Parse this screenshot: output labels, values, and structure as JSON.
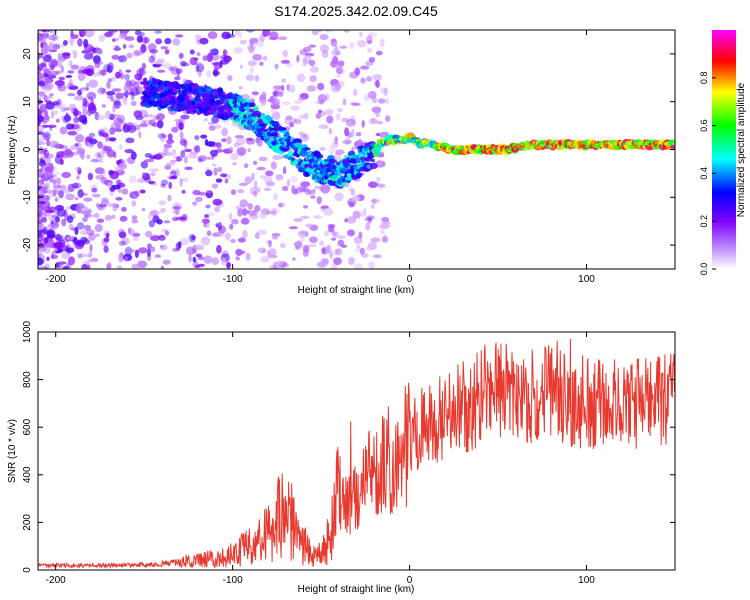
{
  "title": "S174.2025.342.02.09.C45",
  "chart_data": [
    {
      "type": "heatmap",
      "xlabel": "Height of straight line (km)",
      "ylabel": "Frequency (Hz)",
      "xlim": [
        -210,
        150
      ],
      "ylim": [
        -25,
        25
      ],
      "x_ticks": [
        -200,
        -100,
        0,
        100
      ],
      "x_tick_labels": [
        "-200",
        "-100",
        "0",
        "100"
      ],
      "y_ticks": [
        20,
        10,
        0,
        -10,
        -20
      ],
      "y_tick_labels": [
        "20",
        "10",
        "0",
        "-10",
        "-20"
      ],
      "ridge_x": [
        -210,
        -180,
        -150,
        -130,
        -110,
        -100,
        -90,
        -80,
        -70,
        -60,
        -50,
        -40,
        -30,
        -20,
        -15,
        -5,
        0,
        5,
        15,
        25,
        40,
        55,
        70,
        85,
        100,
        120,
        140,
        150
      ],
      "ridge_y": [
        14,
        13,
        12,
        11,
        10,
        9,
        7,
        4,
        1,
        -2,
        -4,
        -5,
        -3,
        -1,
        2,
        2,
        2.5,
        1.5,
        1,
        0,
        0,
        0,
        1,
        1,
        1,
        1,
        1,
        1
      ],
      "colorbar": {
        "label": "Normalized spectral amplitude",
        "ticks": [
          0.0,
          0.2,
          0.4,
          0.6,
          0.8
        ],
        "tick_labels": [
          "0.0",
          "0.2",
          "0.4",
          "0.6",
          "0.8"
        ],
        "range": [
          0,
          1
        ],
        "colors": [
          "#ffffff",
          "#7f00ff",
          "#0000ff",
          "#00ffff",
          "#00ff00",
          "#ffff00",
          "#ff0000",
          "#ff00ff"
        ]
      }
    },
    {
      "type": "line",
      "xlabel": "Height of straight line (km)",
      "ylabel": "SNR (10 * v/v)",
      "xlim": [
        -210,
        150
      ],
      "ylim": [
        0,
        1000
      ],
      "x_ticks": [
        -200,
        -100,
        0,
        100
      ],
      "x_tick_labels": [
        "-200",
        "-100",
        "0",
        "100"
      ],
      "y_ticks": [
        0,
        200,
        400,
        600,
        800,
        1000
      ],
      "y_tick_labels": [
        "0",
        "200",
        "400",
        "600",
        "800",
        "1000"
      ],
      "series": [
        {
          "name": "SNR",
          "color": "#e8392f",
          "x": [
            -210,
            -180,
            -150,
            -120,
            -100,
            -90,
            -80,
            -75,
            -70,
            -65,
            -60,
            -55,
            -50,
            -45,
            -40,
            -37,
            -35,
            -30,
            -25,
            -20,
            -10,
            0,
            10,
            20,
            30,
            40,
            50,
            60,
            70,
            80,
            90,
            100,
            110,
            120,
            130,
            140,
            150
          ],
          "values": [
            20,
            20,
            22,
            40,
            70,
            110,
            160,
            230,
            250,
            200,
            120,
            60,
            70,
            150,
            350,
            420,
            300,
            330,
            420,
            450,
            520,
            570,
            600,
            640,
            680,
            710,
            740,
            730,
            720,
            730,
            720,
            700,
            700,
            710,
            690,
            700,
            700
          ]
        }
      ]
    }
  ]
}
